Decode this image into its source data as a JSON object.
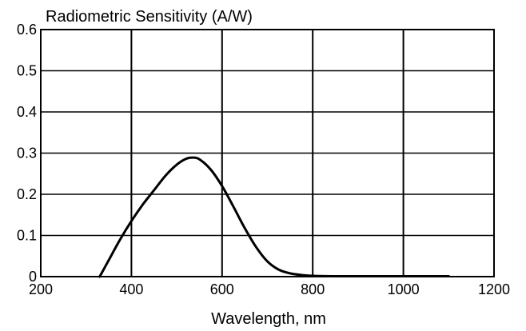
{
  "chart_data": {
    "type": "line",
    "title": "Radiometric Sensitivity (A/W)",
    "xlabel": "Wavelength, nm",
    "ylabel": "",
    "xlim": [
      200,
      1200
    ],
    "ylim": [
      0,
      0.6
    ],
    "x_ticks": [
      200,
      400,
      600,
      800,
      1000,
      1200
    ],
    "y_ticks": [
      0,
      0.1,
      0.2,
      0.3,
      0.4,
      0.5,
      0.6
    ],
    "x_tick_labels": [
      "200",
      "400",
      "600",
      "800",
      "1000",
      "1200"
    ],
    "y_tick_labels": [
      "0",
      "0.1",
      "0.2",
      "0.3",
      "0.4",
      "0.5",
      "0.6"
    ],
    "grid": true,
    "legend": "none",
    "line_color": "#000000",
    "series": [
      {
        "x": [
          330,
          350,
          375,
          400,
          425,
          450,
          475,
          500,
          520,
          535,
          550,
          575,
          600,
          625,
          650,
          675,
          700,
          725,
          750,
          775,
          800,
          850,
          900,
          950,
          1000,
          1050,
          1100
        ],
        "y": [
          0.0,
          0.04,
          0.09,
          0.135,
          0.175,
          0.21,
          0.245,
          0.272,
          0.286,
          0.289,
          0.285,
          0.26,
          0.22,
          0.17,
          0.118,
          0.072,
          0.037,
          0.017,
          0.008,
          0.004,
          0.002,
          0.001,
          0.001,
          0.001,
          0.001,
          0.001,
          0.001
        ]
      }
    ]
  }
}
